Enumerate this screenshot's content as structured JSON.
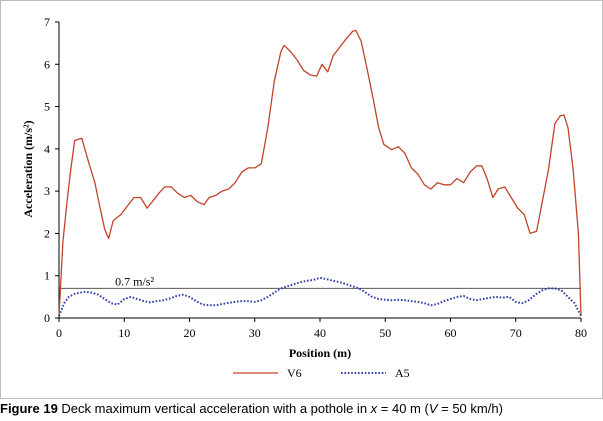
{
  "chart_data": {
    "type": "line",
    "xlabel": "Position (m)",
    "ylabel": "Acceleration (m/s²)",
    "xlim": [
      0,
      80
    ],
    "ylim": [
      0,
      7
    ],
    "x_ticks": [
      0,
      10,
      20,
      30,
      40,
      50,
      60,
      70,
      80
    ],
    "y_ticks": [
      0,
      1,
      2,
      3,
      4,
      5,
      6,
      7
    ],
    "grid": false,
    "legend_position": "bottom",
    "reference_line": {
      "y": 0.7,
      "label": "0.7 m/s²",
      "color": "#5a5a5a"
    },
    "series": [
      {
        "name": "V6",
        "color": "#c0442a",
        "style": "solid",
        "points": [
          [
            0,
            0.05
          ],
          [
            0.6,
            1.8
          ],
          [
            1.2,
            2.7
          ],
          [
            1.8,
            3.5
          ],
          [
            2.4,
            4.2
          ],
          [
            3.5,
            4.25
          ],
          [
            4.5,
            3.7
          ],
          [
            5.5,
            3.2
          ],
          [
            6.3,
            2.6
          ],
          [
            7,
            2.1
          ],
          [
            7.6,
            1.88
          ],
          [
            8.3,
            2.3
          ],
          [
            9.5,
            2.45
          ],
          [
            10.5,
            2.65
          ],
          [
            11.5,
            2.85
          ],
          [
            12.5,
            2.85
          ],
          [
            13.5,
            2.6
          ],
          [
            14.3,
            2.75
          ],
          [
            15.3,
            2.95
          ],
          [
            16.2,
            3.1
          ],
          [
            17.2,
            3.1
          ],
          [
            18.2,
            2.95
          ],
          [
            19.2,
            2.85
          ],
          [
            20.2,
            2.9
          ],
          [
            21.2,
            2.75
          ],
          [
            22.2,
            2.68
          ],
          [
            23,
            2.85
          ],
          [
            24,
            2.9
          ],
          [
            25,
            3.0
          ],
          [
            26,
            3.05
          ],
          [
            27,
            3.2
          ],
          [
            28,
            3.45
          ],
          [
            29,
            3.55
          ],
          [
            30,
            3.55
          ],
          [
            31,
            3.65
          ],
          [
            32,
            4.5
          ],
          [
            33,
            5.6
          ],
          [
            34,
            6.3
          ],
          [
            34.5,
            6.45
          ],
          [
            35.5,
            6.3
          ],
          [
            36.5,
            6.1
          ],
          [
            37.5,
            5.85
          ],
          [
            38.5,
            5.75
          ],
          [
            39.5,
            5.72
          ],
          [
            40.3,
            6.0
          ],
          [
            41.2,
            5.82
          ],
          [
            42,
            6.2
          ],
          [
            43,
            6.4
          ],
          [
            44,
            6.6
          ],
          [
            45,
            6.78
          ],
          [
            45.5,
            6.8
          ],
          [
            46.3,
            6.55
          ],
          [
            47.2,
            5.9
          ],
          [
            48,
            5.3
          ],
          [
            49,
            4.5
          ],
          [
            49.8,
            4.1
          ],
          [
            51,
            3.98
          ],
          [
            52,
            4.05
          ],
          [
            53,
            3.9
          ],
          [
            54,
            3.55
          ],
          [
            55,
            3.4
          ],
          [
            56,
            3.15
          ],
          [
            57,
            3.05
          ],
          [
            58,
            3.2
          ],
          [
            59,
            3.15
          ],
          [
            60,
            3.15
          ],
          [
            61,
            3.3
          ],
          [
            62,
            3.2
          ],
          [
            63,
            3.45
          ],
          [
            64,
            3.6
          ],
          [
            64.8,
            3.6
          ],
          [
            65.6,
            3.3
          ],
          [
            66.5,
            2.85
          ],
          [
            67.3,
            3.05
          ],
          [
            68.3,
            3.1
          ],
          [
            69.3,
            2.85
          ],
          [
            70.3,
            2.6
          ],
          [
            71.3,
            2.45
          ],
          [
            72.2,
            2.0
          ],
          [
            73.2,
            2.05
          ],
          [
            74,
            2.7
          ],
          [
            75,
            3.5
          ],
          [
            76,
            4.6
          ],
          [
            76.8,
            4.78
          ],
          [
            77.4,
            4.8
          ],
          [
            78,
            4.5
          ],
          [
            78.8,
            3.5
          ],
          [
            79.6,
            2.0
          ],
          [
            80,
            0.05
          ]
        ]
      },
      {
        "name": "A5",
        "color": "#2f3fa6",
        "style": "dotted",
        "points": [
          [
            0,
            0.05
          ],
          [
            0.8,
            0.35
          ],
          [
            1.5,
            0.5
          ],
          [
            2.5,
            0.58
          ],
          [
            4,
            0.62
          ],
          [
            5,
            0.6
          ],
          [
            6,
            0.55
          ],
          [
            7,
            0.45
          ],
          [
            8,
            0.35
          ],
          [
            9,
            0.32
          ],
          [
            10,
            0.45
          ],
          [
            11,
            0.5
          ],
          [
            12,
            0.45
          ],
          [
            13,
            0.4
          ],
          [
            14,
            0.37
          ],
          [
            15,
            0.4
          ],
          [
            16,
            0.42
          ],
          [
            17,
            0.46
          ],
          [
            18,
            0.52
          ],
          [
            19,
            0.55
          ],
          [
            20,
            0.5
          ],
          [
            21,
            0.4
          ],
          [
            22,
            0.32
          ],
          [
            23,
            0.3
          ],
          [
            24,
            0.3
          ],
          [
            25,
            0.33
          ],
          [
            26,
            0.36
          ],
          [
            27,
            0.38
          ],
          [
            28,
            0.4
          ],
          [
            29,
            0.4
          ],
          [
            30,
            0.38
          ],
          [
            31,
            0.42
          ],
          [
            32,
            0.5
          ],
          [
            33,
            0.6
          ],
          [
            34,
            0.7
          ],
          [
            35,
            0.75
          ],
          [
            36,
            0.8
          ],
          [
            37,
            0.85
          ],
          [
            38,
            0.88
          ],
          [
            39,
            0.9
          ],
          [
            40,
            0.95
          ],
          [
            41,
            0.92
          ],
          [
            42,
            0.88
          ],
          [
            43,
            0.85
          ],
          [
            44,
            0.8
          ],
          [
            45,
            0.75
          ],
          [
            46,
            0.7
          ],
          [
            47,
            0.6
          ],
          [
            48,
            0.5
          ],
          [
            49,
            0.45
          ],
          [
            50,
            0.43
          ],
          [
            51,
            0.42
          ],
          [
            52,
            0.43
          ],
          [
            53,
            0.42
          ],
          [
            54,
            0.4
          ],
          [
            55,
            0.38
          ],
          [
            56,
            0.35
          ],
          [
            57,
            0.3
          ],
          [
            58,
            0.33
          ],
          [
            59,
            0.4
          ],
          [
            60,
            0.45
          ],
          [
            61,
            0.5
          ],
          [
            62,
            0.52
          ],
          [
            63,
            0.45
          ],
          [
            64,
            0.42
          ],
          [
            65,
            0.45
          ],
          [
            66,
            0.48
          ],
          [
            67,
            0.5
          ],
          [
            68,
            0.48
          ],
          [
            69,
            0.5
          ],
          [
            70,
            0.38
          ],
          [
            71,
            0.35
          ],
          [
            72,
            0.42
          ],
          [
            73,
            0.55
          ],
          [
            74,
            0.65
          ],
          [
            75,
            0.7
          ],
          [
            76,
            0.7
          ],
          [
            77,
            0.65
          ],
          [
            78,
            0.5
          ],
          [
            79,
            0.35
          ],
          [
            80,
            0.05
          ]
        ]
      }
    ]
  },
  "caption": {
    "label": "Figure 19",
    "text_1": "Deck maximum vertical acceleration with a pothole in ",
    "var_x": "x",
    "text_2": " = 40 m (",
    "var_v": "V",
    "text_3": " = 50 km/h)"
  }
}
